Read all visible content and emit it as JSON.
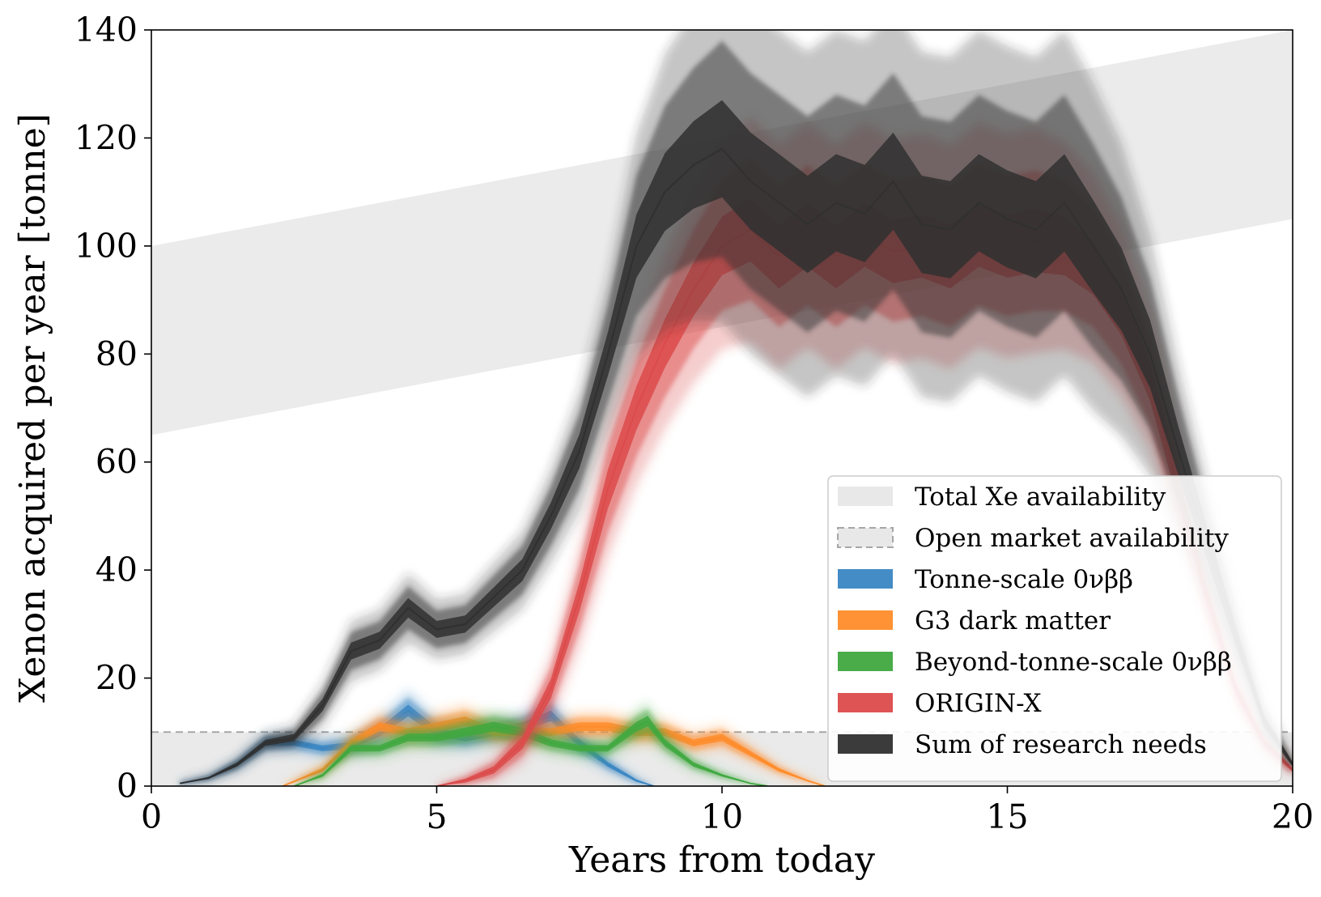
{
  "chart_data": {
    "type": "area",
    "xlabel": "Years from today",
    "ylabel": "Xenon acquired per year [tonne]",
    "xlim": [
      0,
      20
    ],
    "ylim": [
      0,
      140
    ],
    "xticks": [
      0,
      5,
      10,
      15,
      20
    ],
    "yticks": [
      0,
      20,
      40,
      60,
      80,
      100,
      120,
      140
    ],
    "legend_position": "lower-right",
    "bands": [
      {
        "name": "Total Xe availability",
        "color": "#e6e6e6",
        "x": [
          0,
          20
        ],
        "lower": [
          65,
          105
        ],
        "upper": [
          100,
          140
        ]
      },
      {
        "name": "Open market availability",
        "color": "#e6e6e6",
        "edge_color": "#a6a6a6",
        "dashed": true,
        "x": [
          0,
          20
        ],
        "lower": [
          0,
          0
        ],
        "upper": [
          10,
          10
        ]
      }
    ],
    "series": [
      {
        "name": "Tonne-scale 0νββ",
        "color": "#3a86c3",
        "x": [
          0.5,
          1,
          1.5,
          2,
          2.5,
          3,
          3.5,
          4,
          4.5,
          5,
          5.5,
          6,
          6.5,
          7,
          7.5,
          8,
          8.5,
          8.8
        ],
        "y": [
          0.5,
          1.5,
          4,
          8,
          8,
          7,
          7.5,
          10,
          14,
          10,
          9,
          10,
          11,
          13,
          8,
          4,
          1,
          0
        ],
        "spread": [
          0.2,
          0.4,
          0.8,
          1.2,
          1.2,
          1.2,
          1.4,
          1.8,
          2.4,
          1.8,
          1.6,
          1.6,
          1.8,
          2.2,
          1.6,
          1,
          0.5,
          0.1
        ]
      },
      {
        "name": "G3 dark matter",
        "color": "#ff8c2a",
        "x": [
          2.3,
          3,
          3.5,
          4,
          4.5,
          5,
          5.5,
          6,
          6.5,
          7,
          7.5,
          8,
          8.5,
          9,
          9.5,
          10,
          10.5,
          11,
          11.5,
          11.8
        ],
        "y": [
          0,
          3,
          8,
          11,
          10,
          11,
          12,
          10,
          10,
          10,
          11,
          11,
          10,
          10,
          8,
          9,
          6,
          3,
          1,
          0
        ],
        "spread": [
          0.1,
          0.8,
          1.4,
          1.8,
          1.6,
          1.8,
          2,
          1.6,
          1.6,
          1.6,
          1.8,
          1.8,
          1.6,
          1.6,
          1.4,
          1.5,
          1.1,
          0.7,
          0.3,
          0.1
        ]
      },
      {
        "name": "Beyond-tonne-scale 0νββ",
        "color": "#3fa83f",
        "x": [
          2.5,
          3,
          3.5,
          4,
          4.5,
          5,
          5.5,
          6,
          6.5,
          7,
          7.5,
          8,
          8.5,
          8.7,
          9,
          9.5,
          10,
          10.5,
          10.8
        ],
        "y": [
          0,
          2,
          7,
          7,
          9,
          9,
          10,
          11,
          10,
          8,
          7,
          7,
          11,
          12,
          8,
          4,
          2,
          0.5,
          0
        ],
        "spread": [
          0.1,
          0.6,
          1.3,
          1.3,
          1.6,
          1.6,
          1.8,
          2,
          1.8,
          1.5,
          1.3,
          1.3,
          2,
          2.2,
          1.5,
          0.9,
          0.5,
          0.2,
          0.1
        ]
      },
      {
        "name": "ORIGIN-X",
        "color": "#dc4a4a",
        "x": [
          5,
          5.5,
          6,
          6.5,
          7,
          7.5,
          8,
          8.5,
          9,
          9.5,
          10,
          10.5,
          11,
          11.5,
          12,
          12.5,
          13,
          13.5,
          14,
          14.5,
          15,
          15.5,
          16,
          16.5,
          17,
          17.5,
          18,
          18.5,
          19,
          19.5,
          20
        ],
        "y": [
          0,
          1,
          3,
          8,
          18,
          35,
          55,
          70,
          82,
          92,
          100,
          103,
          98,
          102,
          98,
          102,
          99,
          100,
          98,
          102,
          100,
          101,
          100,
          96,
          88,
          75,
          55,
          35,
          18,
          8,
          3
        ],
        "spread": [
          0.2,
          0.8,
          1.5,
          2.5,
          4,
          6,
          8,
          9,
          10,
          11,
          12,
          13,
          13,
          13,
          13,
          13,
          13,
          13,
          13,
          13,
          13,
          13,
          12,
          11,
          10,
          8,
          6,
          4,
          2.5,
          1.5,
          0.8
        ]
      },
      {
        "name": "Sum of research needs",
        "color": "#303030",
        "x": [
          0.5,
          1,
          1.5,
          2,
          2.5,
          3,
          3.5,
          4,
          4.5,
          5,
          5.5,
          6,
          6.5,
          7,
          7.5,
          8,
          8.5,
          9,
          9.5,
          10,
          10.5,
          11,
          11.5,
          12,
          12.5,
          13,
          13.5,
          14,
          14.5,
          15,
          15.5,
          16,
          16.5,
          17,
          17.5,
          18,
          18.5,
          19,
          19.5,
          20
        ],
        "y": [
          0.5,
          1.5,
          4,
          8,
          9,
          15,
          25,
          27,
          33,
          29,
          30,
          35,
          40,
          50,
          62,
          80,
          100,
          110,
          115,
          118,
          112,
          108,
          104,
          108,
          106,
          112,
          104,
          103,
          108,
          105,
          103,
          108,
          100,
          92,
          80,
          62,
          45,
          28,
          12,
          4
        ],
        "spread": [
          0.2,
          0.4,
          0.8,
          1.2,
          1.5,
          2.5,
          3.5,
          3.5,
          4,
          3.5,
          3.5,
          4,
          4.5,
          5.5,
          7,
          9,
          13,
          16,
          18,
          20,
          20,
          20,
          20,
          20,
          20,
          20,
          20,
          20,
          20,
          20,
          20,
          20,
          19,
          17,
          14,
          10,
          7,
          4.5,
          2.5,
          1
        ]
      }
    ]
  }
}
